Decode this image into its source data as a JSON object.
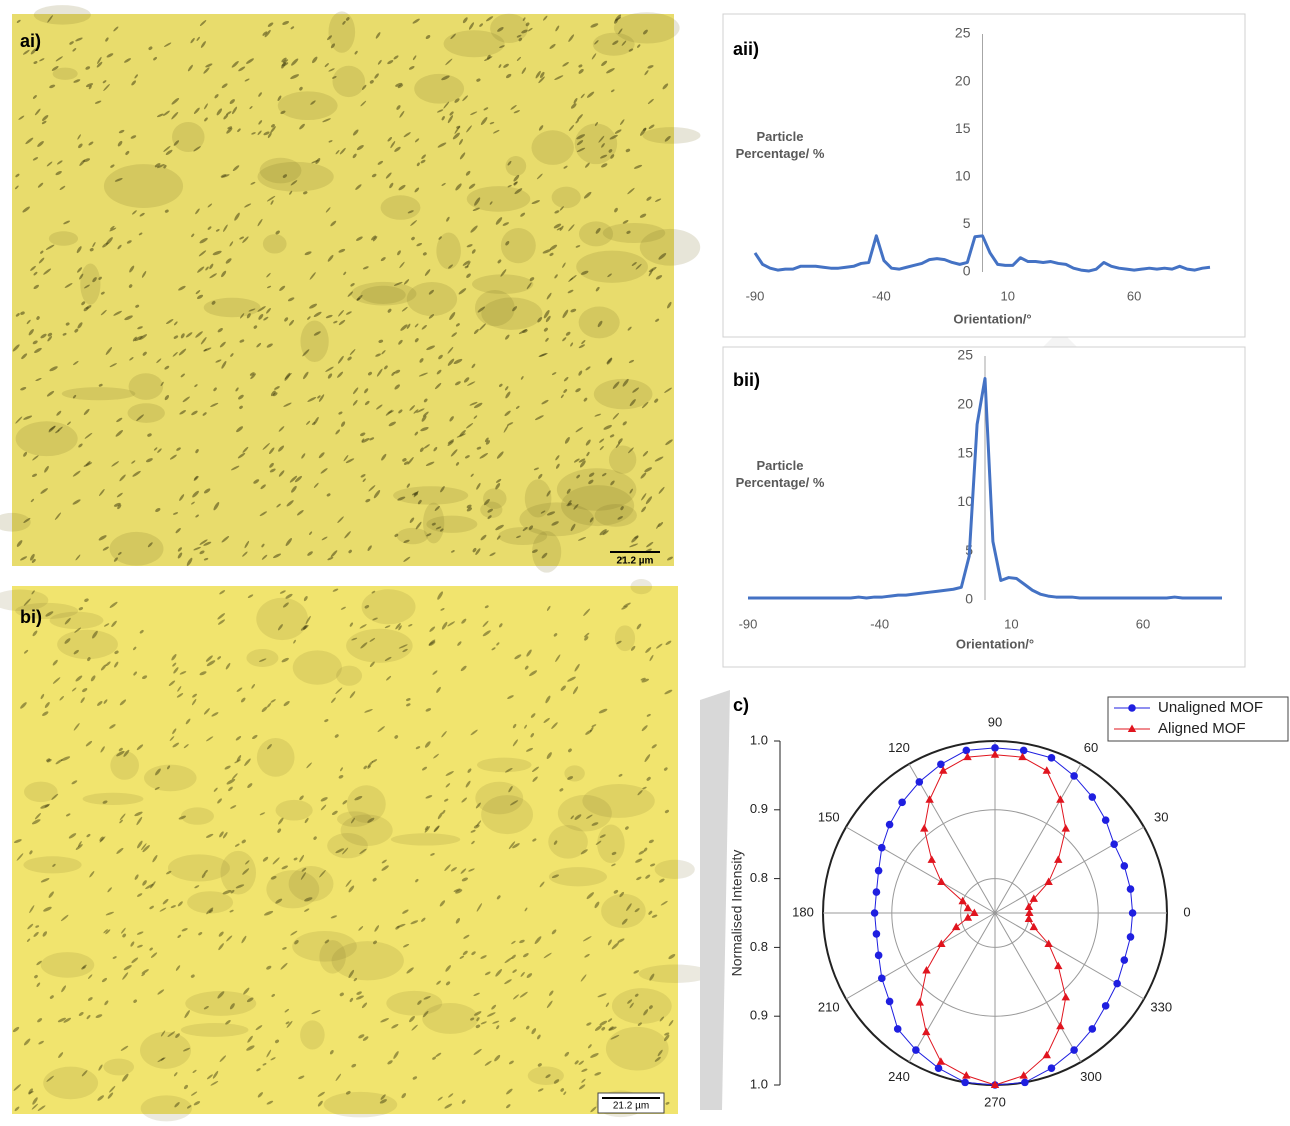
{
  "panels": [
    {
      "label": "ai)",
      "scale_bar": "21.2 µm"
    },
    {
      "label": "bi)",
      "scale_bar": "21.2 µm"
    }
  ],
  "chart_data": [
    {
      "type": "line",
      "panel_label": "aii)",
      "ylabel": "Particle Percentage/ %",
      "xlabel": "Orientation/°",
      "x": [
        -90,
        -87,
        -84,
        -81,
        -78,
        -75,
        -72,
        -69,
        -66,
        -63,
        -60,
        -57,
        -54,
        -51,
        -48,
        -45,
        -42,
        -39,
        -36,
        -33,
        -30,
        -27,
        -24,
        -21,
        -18,
        -15,
        -12,
        -9,
        -6,
        -3,
        0,
        3,
        6,
        9,
        12,
        15,
        18,
        21,
        24,
        27,
        30,
        33,
        36,
        39,
        42,
        45,
        48,
        51,
        54,
        57,
        60,
        63,
        66,
        69,
        72,
        75,
        78,
        81,
        84,
        87,
        90
      ],
      "values": [
        2.0,
        0.8,
        0.4,
        0.2,
        0.3,
        0.3,
        0.6,
        0.6,
        0.6,
        0.5,
        0.4,
        0.4,
        0.5,
        0.6,
        0.9,
        1.0,
        3.8,
        1.2,
        0.4,
        0.3,
        0.5,
        0.7,
        0.9,
        1.3,
        1.4,
        1.3,
        1.0,
        0.8,
        1.0,
        3.7,
        3.8,
        2.0,
        0.8,
        0.7,
        0.7,
        1.5,
        1.1,
        1.1,
        1.0,
        1.1,
        0.9,
        0.8,
        0.4,
        0.2,
        0.1,
        0.3,
        1.0,
        0.6,
        0.4,
        0.3,
        0.2,
        0.3,
        0.4,
        0.3,
        0.4,
        0.3,
        0.6,
        0.3,
        0.2,
        0.4,
        0.5
      ],
      "color": "#4472c4",
      "xlim": [
        -90,
        90
      ],
      "xticks": [
        -90,
        -40,
        10,
        60
      ],
      "ylim": [
        0,
        25
      ],
      "yticks": [
        0,
        5,
        10,
        15,
        20,
        25
      ]
    },
    {
      "type": "line",
      "panel_label": "bii)",
      "ylabel": "Particle Percentage/ %",
      "xlabel": "Orientation/°",
      "x": [
        -90,
        -87,
        -84,
        -81,
        -78,
        -75,
        -72,
        -69,
        -66,
        -63,
        -60,
        -57,
        -54,
        -51,
        -48,
        -45,
        -42,
        -39,
        -36,
        -33,
        -30,
        -27,
        -24,
        -21,
        -18,
        -15,
        -12,
        -9,
        -6,
        -3,
        0,
        3,
        6,
        9,
        12,
        15,
        18,
        21,
        24,
        27,
        30,
        33,
        36,
        39,
        42,
        45,
        48,
        51,
        54,
        57,
        60,
        63,
        66,
        69,
        72,
        75,
        78,
        81,
        84,
        87,
        90
      ],
      "values": [
        0.2,
        0.2,
        0.2,
        0.2,
        0.2,
        0.2,
        0.2,
        0.2,
        0.2,
        0.2,
        0.2,
        0.2,
        0.2,
        0.2,
        0.3,
        0.2,
        0.3,
        0.3,
        0.4,
        0.5,
        0.5,
        0.6,
        0.7,
        0.8,
        0.9,
        1.0,
        1.1,
        1.3,
        4.5,
        18.0,
        22.7,
        6.0,
        2.0,
        2.3,
        2.2,
        1.6,
        1.0,
        0.6,
        0.4,
        0.3,
        0.3,
        0.3,
        0.2,
        0.2,
        0.2,
        0.2,
        0.2,
        0.2,
        0.2,
        0.2,
        0.2,
        0.2,
        0.2,
        0.2,
        0.3,
        0.2,
        0.2,
        0.2,
        0.2,
        0.2,
        0.2
      ],
      "color": "#4472c4",
      "xlim": [
        -90,
        90
      ],
      "xticks": [
        -90,
        -40,
        10,
        60
      ],
      "ylim": [
        0,
        25
      ],
      "yticks": [
        0,
        5,
        10,
        15,
        20,
        25
      ]
    },
    {
      "type": "polar",
      "panel_label": "c)",
      "ylabel": "Normalised Intensity",
      "theta": [
        0,
        10,
        20,
        30,
        40,
        50,
        60,
        70,
        80,
        90,
        100,
        110,
        120,
        130,
        140,
        150,
        160,
        170,
        180,
        190,
        200,
        210,
        220,
        230,
        240,
        250,
        260,
        270,
        280,
        290,
        300,
        310,
        320,
        330,
        340,
        350
      ],
      "series": [
        {
          "name": "Unaligned MOF",
          "color": "#1f1fe0",
          "marker": "circle",
          "values": [
            0.95,
            0.95,
            0.95,
            0.95,
            0.96,
            0.97,
            0.98,
            0.99,
            0.99,
            0.99,
            0.99,
            0.98,
            0.97,
            0.96,
            0.95,
            0.94,
            0.93,
            0.925,
            0.925,
            0.925,
            0.93,
            0.94,
            0.95,
            0.97,
            0.98,
            0.99,
            1.0,
            1.0,
            1.0,
            0.99,
            0.98,
            0.97,
            0.96,
            0.955,
            0.95,
            0.95
          ]
        },
        {
          "name": "Aligned MOF",
          "color": "#e0141e",
          "marker": "triangle",
          "values": [
            0.8,
            0.8,
            0.81,
            0.84,
            0.87,
            0.91,
            0.94,
            0.97,
            0.98,
            0.98,
            0.98,
            0.97,
            0.94,
            0.91,
            0.87,
            0.84,
            0.8,
            0.79,
            0.78,
            0.79,
            0.81,
            0.84,
            0.88,
            0.92,
            0.95,
            0.98,
            0.99,
            1.0,
            0.99,
            0.97,
            0.94,
            0.91,
            0.87,
            0.84,
            0.81,
            0.8
          ]
        }
      ],
      "rlim": [
        0.75,
        1.0
      ],
      "rticks": [
        0.8,
        0.9,
        {
          "value": 1,
          "label": "1.0"
        }
      ],
      "thetaticks": [
        0,
        30,
        60,
        90,
        120,
        150,
        180,
        210,
        240,
        270,
        300,
        330
      ],
      "legend": "upper right"
    }
  ]
}
